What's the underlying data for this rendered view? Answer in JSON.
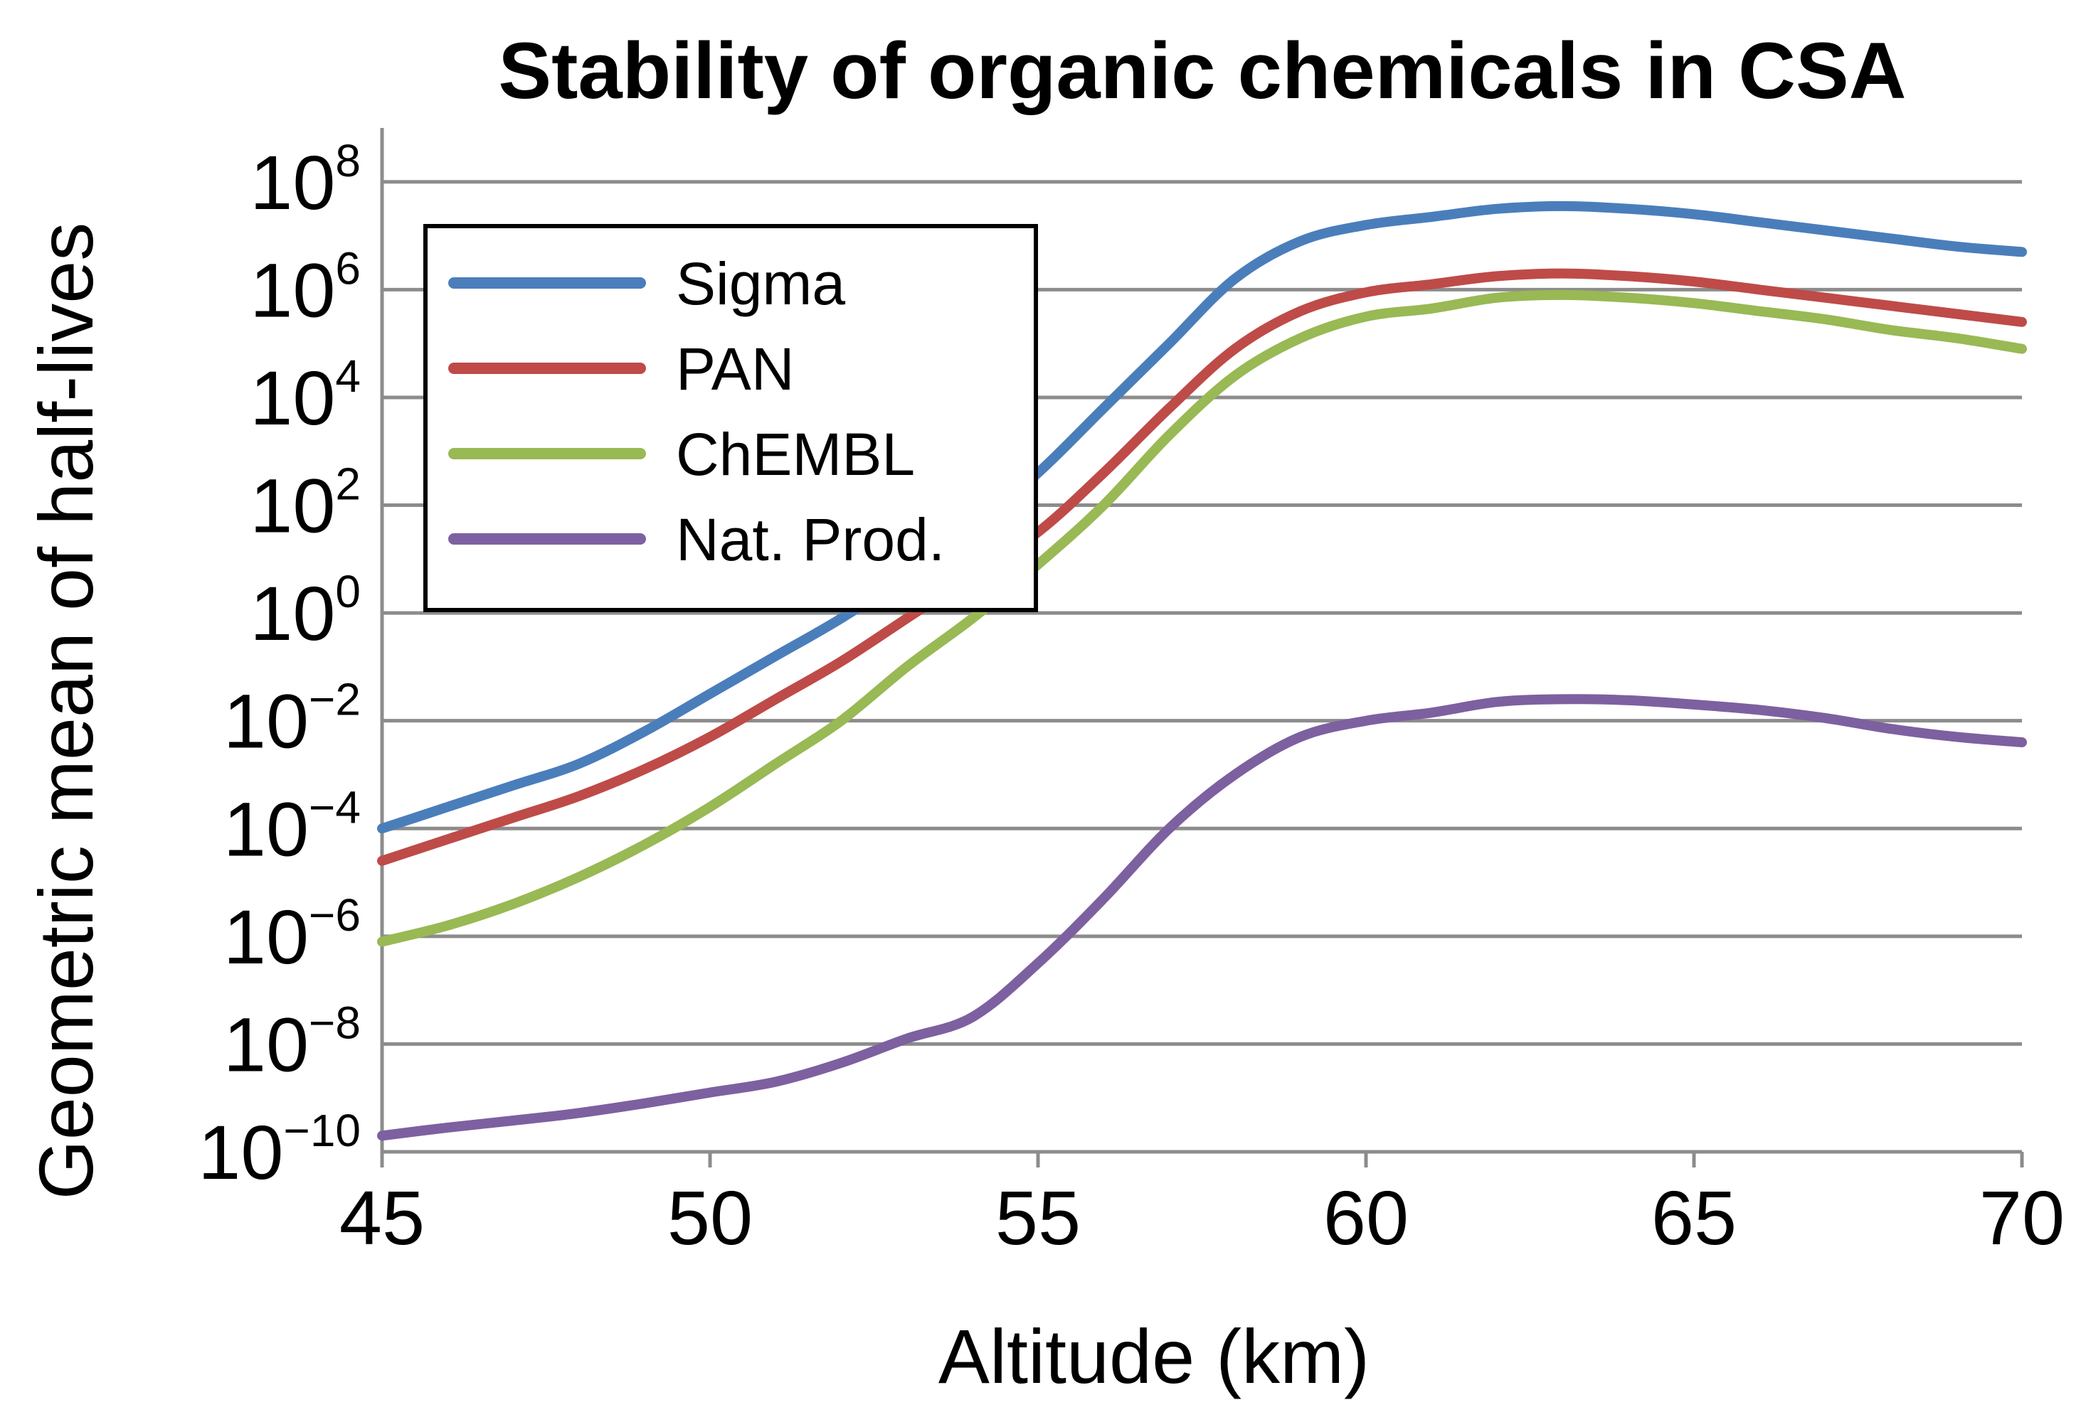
{
  "chart_data": {
    "type": "line",
    "title": "Stability of organic chemicals in CSA",
    "xlabel": "Altitude (km)",
    "ylabel": "Geometric mean of half-lives",
    "xlim": [
      45,
      70
    ],
    "ylim_log10": [
      -10,
      9
    ],
    "y_scale": "log10",
    "grid": true,
    "legend_position": "top-left",
    "x_ticks": [
      45,
      50,
      55,
      60,
      65,
      70
    ],
    "x_tick_labels": [
      "45",
      "50",
      "55",
      "60",
      "65",
      "70"
    ],
    "y_ticks": [
      {
        "base": "10",
        "exp": "−10",
        "log": -10
      },
      {
        "base": "10",
        "exp": "−8",
        "log": -8
      },
      {
        "base": "10",
        "exp": "−6",
        "log": -6
      },
      {
        "base": "10",
        "exp": "−4",
        "log": -4
      },
      {
        "base": "10",
        "exp": "−2",
        "log": -2
      },
      {
        "base": "10",
        "exp": "0",
        "log": 0
      },
      {
        "base": "10",
        "exp": "2",
        "log": 2
      },
      {
        "base": "10",
        "exp": "4",
        "log": 4
      },
      {
        "base": "10",
        "exp": "6",
        "log": 6
      },
      {
        "base": "10",
        "exp": "8",
        "log": 8
      }
    ],
    "x": [
      45,
      46,
      47,
      48,
      49,
      50,
      51,
      52,
      53,
      54,
      55,
      56,
      57,
      58,
      59,
      60,
      61,
      62,
      63,
      64,
      65,
      66,
      67,
      68,
      69,
      70
    ],
    "series": [
      {
        "name": "Sigma",
        "color": "#4a7ebb",
        "log10_values": [
          -4.0,
          -3.6,
          -3.2,
          -2.8,
          -2.2,
          -1.5,
          -0.8,
          -0.1,
          0.7,
          1.6,
          2.6,
          3.8,
          5.0,
          6.2,
          6.9,
          7.2,
          7.35,
          7.5,
          7.55,
          7.5,
          7.4,
          7.25,
          7.1,
          6.95,
          6.8,
          6.7
        ]
      },
      {
        "name": "PAN",
        "color": "#be4b48",
        "log10_values": [
          -4.6,
          -4.2,
          -3.8,
          -3.4,
          -2.9,
          -2.3,
          -1.6,
          -0.9,
          -0.1,
          0.7,
          1.5,
          2.6,
          3.8,
          4.9,
          5.6,
          5.95,
          6.1,
          6.25,
          6.3,
          6.25,
          6.15,
          6.0,
          5.85,
          5.7,
          5.55,
          5.4
        ]
      },
      {
        "name": "ChEMBL",
        "color": "#98b954",
        "log10_values": [
          -6.1,
          -5.8,
          -5.4,
          -4.9,
          -4.3,
          -3.6,
          -2.8,
          -2.0,
          -1.0,
          -0.1,
          0.9,
          2.0,
          3.3,
          4.4,
          5.1,
          5.5,
          5.65,
          5.85,
          5.9,
          5.85,
          5.75,
          5.6,
          5.45,
          5.25,
          5.1,
          4.9
        ]
      },
      {
        "name": "Nat. Prod.",
        "color": "#7d60a0",
        "log10_values": [
          -9.7,
          -9.55,
          -9.42,
          -9.28,
          -9.1,
          -8.9,
          -8.7,
          -8.35,
          -7.9,
          -7.5,
          -6.5,
          -5.3,
          -4.0,
          -3.0,
          -2.3,
          -2.0,
          -1.85,
          -1.65,
          -1.6,
          -1.62,
          -1.7,
          -1.8,
          -1.95,
          -2.15,
          -2.3,
          -2.4
        ]
      }
    ]
  }
}
